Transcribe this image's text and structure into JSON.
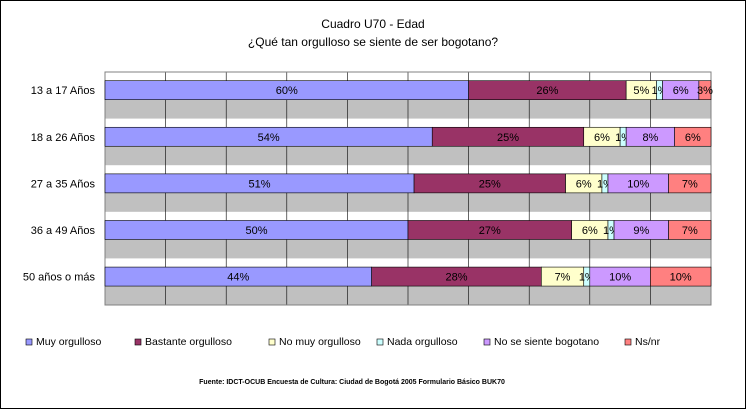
{
  "chart_data": {
    "type": "bar",
    "orientation": "horizontal",
    "stacked": true,
    "title": "Cuadro U70 - Edad",
    "subtitle": "¿Qué tan orgulloso se siente de ser bogotano?",
    "categories": [
      "13 a 17 Años",
      "18 a 26 Años",
      "27 a 35 Años",
      "36 a 49 Años",
      "50 años o más"
    ],
    "series": [
      {
        "name": "Muy orgulloso",
        "color": "#9999ff",
        "values": [
          60,
          54,
          51,
          50,
          44
        ],
        "labels": [
          "60%",
          "54%",
          "51%",
          "50%",
          "44%"
        ]
      },
      {
        "name": "Bastante orgulloso",
        "color": "#993366",
        "values": [
          26,
          25,
          25,
          27,
          28
        ],
        "labels": [
          "26%",
          "25%",
          "25%",
          "27%",
          "28%"
        ]
      },
      {
        "name": "No muy orgulloso",
        "color": "#ffffcc",
        "values": [
          5,
          6,
          6,
          6,
          7
        ],
        "labels": [
          "5%",
          "6%",
          "6%",
          "6%",
          "7%"
        ]
      },
      {
        "name": "Nada orgulloso",
        "color": "#ccffff",
        "values": [
          1,
          1,
          1,
          1,
          1
        ],
        "labels": [
          "1%",
          "1%",
          "1%",
          "1%",
          "1%"
        ]
      },
      {
        "name": "No se siente bogotano",
        "color": "#cc99ff",
        "values": [
          6,
          8,
          10,
          9,
          10
        ],
        "labels": [
          "6%",
          "8%",
          "10%",
          "9%",
          "10%"
        ]
      },
      {
        "name": "Ns/nr",
        "color": "#ff8080",
        "values": [
          3,
          6,
          7,
          7,
          10
        ],
        "labels": [
          "3%",
          "6%",
          "7%",
          "7%",
          "10%"
        ]
      }
    ],
    "xlim": [
      0,
      100
    ],
    "grid": true,
    "legend": "bottom"
  },
  "footer": {
    "source": "Fuente: IDCT-OCUB Encuesta de Cultura: Ciudad de Bogotá 2005 Formulario Básico BUK70"
  }
}
